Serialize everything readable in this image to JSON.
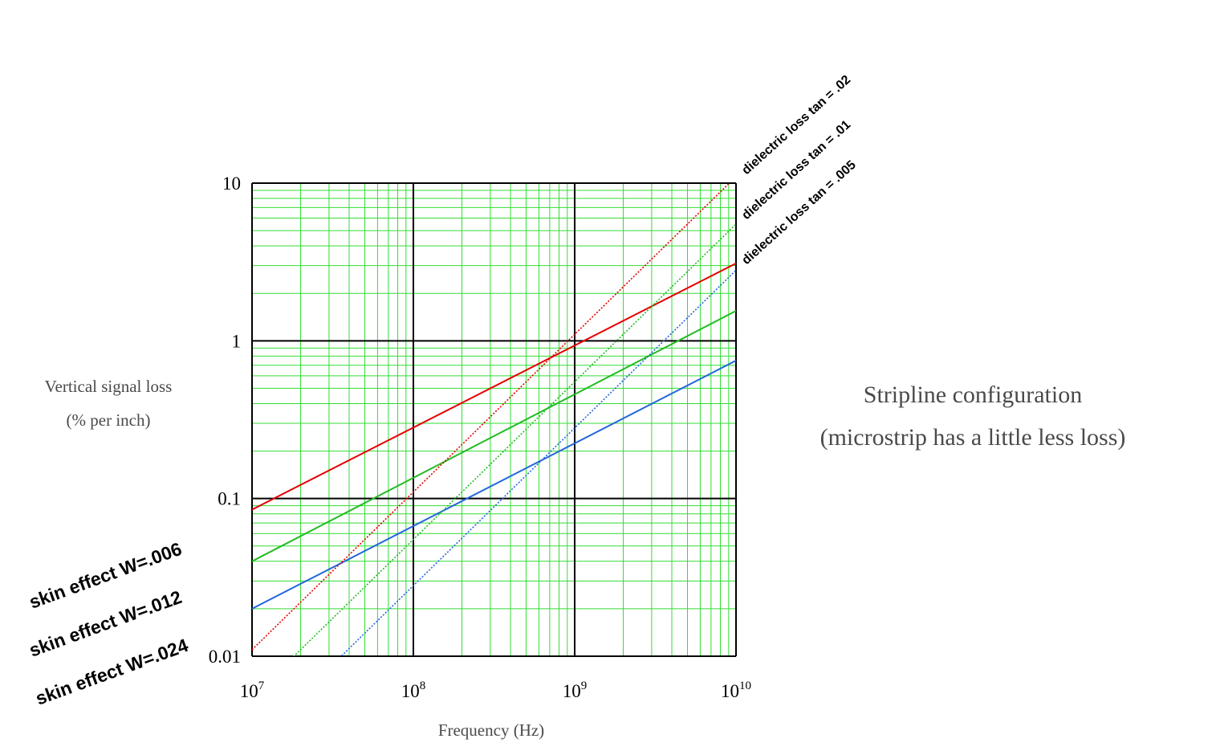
{
  "chart_data": {
    "type": "line",
    "title": "",
    "xlabel": "Frequency (Hz)",
    "ylabel_lines": [
      "Vertical signal loss",
      "(% per inch)"
    ],
    "x_scale": "log",
    "y_scale": "log",
    "xlim": [
      10000000,
      10000000000
    ],
    "ylim": [
      0.01,
      10
    ],
    "grid": true,
    "x_ticks": [
      {
        "value": 10000000,
        "base": "10",
        "exp": "7"
      },
      {
        "value": 100000000,
        "base": "10",
        "exp": "8"
      },
      {
        "value": 1000000000,
        "base": "10",
        "exp": "9"
      },
      {
        "value": 10000000000,
        "base": "10",
        "exp": "10"
      }
    ],
    "y_ticks": [
      {
        "value": 0.01,
        "label": "0.01"
      },
      {
        "value": 0.1,
        "label": "0.1"
      },
      {
        "value": 1,
        "label": "1"
      },
      {
        "value": 10,
        "label": "10"
      }
    ],
    "series": [
      {
        "name": "skin effect W=.006",
        "kind": "skin",
        "style": "solid",
        "color": "#e60000",
        "x": [
          10000000,
          10000000000
        ],
        "y": [
          0.085,
          3.1
        ]
      },
      {
        "name": "skin effect W=.012",
        "kind": "skin",
        "style": "solid",
        "color": "#22bb22",
        "x": [
          10000000,
          10000000000
        ],
        "y": [
          0.04,
          1.55
        ]
      },
      {
        "name": "skin effect W=.024",
        "kind": "skin",
        "style": "solid",
        "color": "#2266dd",
        "x": [
          10000000,
          10000000000
        ],
        "y": [
          0.02,
          0.75
        ]
      },
      {
        "name": "dielectric loss tan = .02",
        "kind": "dielectric",
        "style": "dotted",
        "color": "#e60000",
        "x": [
          10000000,
          10000000000
        ],
        "y": [
          0.011,
          11
        ]
      },
      {
        "name": "dielectric loss tan = .01",
        "kind": "dielectric",
        "style": "dotted",
        "color": "#22bb22",
        "x": [
          10000000,
          10000000000
        ],
        "y": [
          0.0055,
          5.5
        ]
      },
      {
        "name": "dielectric loss tan = .005",
        "kind": "dielectric",
        "style": "dotted",
        "color": "#2266dd",
        "x": [
          10000000,
          10000000000
        ],
        "y": [
          0.0028,
          2.8
        ]
      }
    ],
    "annotation_lines": [
      "Stripline configuration",
      "(microstrip has a little less loss)"
    ]
  },
  "colors": {
    "minor_grid": "#33dd33",
    "major_grid": "#000000",
    "background": "#ffffff"
  }
}
